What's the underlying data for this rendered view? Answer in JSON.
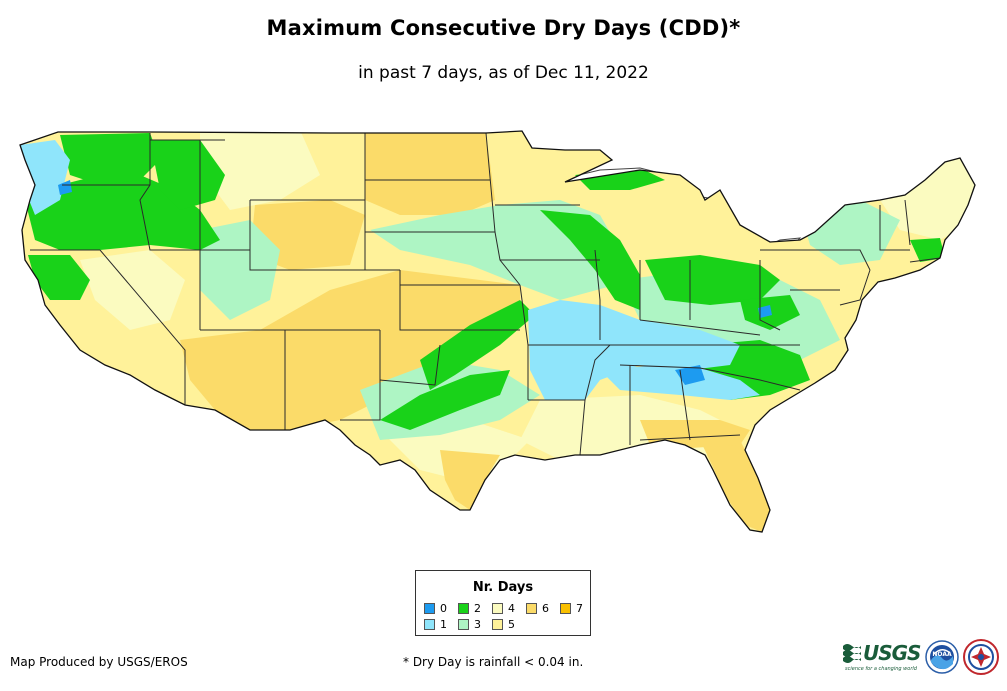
{
  "title": "Maximum Consecutive Dry Days (CDD)*",
  "subtitle": "in past 7 days, as of Dec 11, 2022",
  "legend": {
    "title": "Nr. Days",
    "items": [
      {
        "label": "0",
        "color": "#1d9bf0"
      },
      {
        "label": "1",
        "color": "#8fe5fb"
      },
      {
        "label": "2",
        "color": "#19d219"
      },
      {
        "label": "3",
        "color": "#aef5c4"
      },
      {
        "label": "4",
        "color": "#fbfbc0"
      },
      {
        "label": "5",
        "color": "#fff29a"
      },
      {
        "label": "6",
        "color": "#fbdb69"
      },
      {
        "label": "7",
        "color": "#f9c000"
      }
    ]
  },
  "credit": "Map Produced by USGS/EROS",
  "footnote": "* Dry Day is rainfall < 0.04 in.",
  "logos": {
    "usgs_word": "USGS",
    "usgs_tagline": "science for a changing world",
    "noaa_text": "NOAA"
  }
}
